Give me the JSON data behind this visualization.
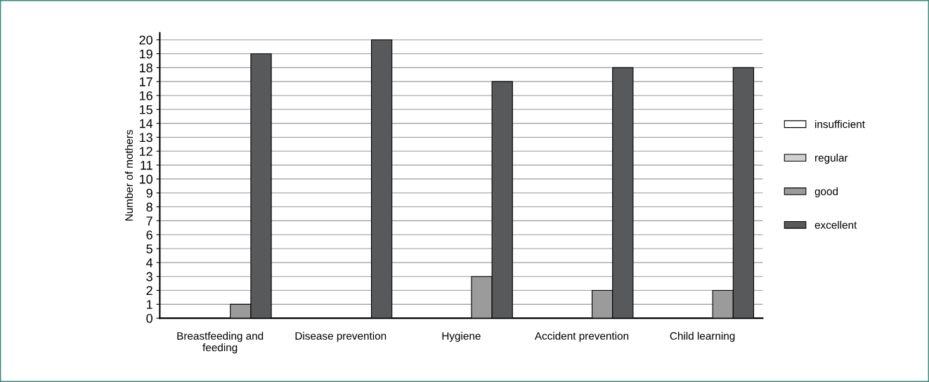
{
  "chart_data": {
    "type": "bar",
    "ylabel": "Number of mothers",
    "categories": [
      "Breastfeeding and\nfeeding",
      "Disease prevention",
      "Hygiene",
      "Accident prevention",
      "Child learning"
    ],
    "series": [
      {
        "name": "insufficient",
        "color": "#ffffff",
        "values": [
          0,
          0,
          0,
          0,
          0
        ]
      },
      {
        "name": "regular",
        "color": "#d0d0d0",
        "values": [
          0,
          0,
          0,
          0,
          0
        ]
      },
      {
        "name": "good",
        "color": "#9b9b9b",
        "values": [
          1,
          0,
          3,
          2,
          2
        ]
      },
      {
        "name": "excellent",
        "color": "#58595b",
        "values": [
          19,
          20,
          17,
          18,
          18
        ]
      }
    ],
    "ylim": [
      0,
      20.5
    ],
    "yticks": [
      0,
      1,
      2,
      3,
      4,
      5,
      6,
      7,
      8,
      9,
      10,
      11,
      12,
      13,
      14,
      15,
      16,
      17,
      18,
      19,
      20
    ],
    "grid": "y",
    "legend": "right"
  }
}
